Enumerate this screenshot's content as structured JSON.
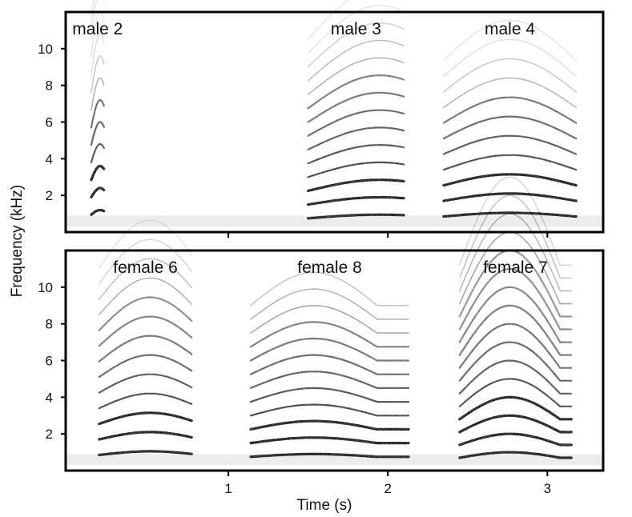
{
  "chart_data": {
    "type": "spectrogram",
    "ylabel": "Frequency (kHz)",
    "xlabel": "Time (s)",
    "x_ticks": [
      1,
      2,
      3
    ],
    "y_ticks": [
      2,
      4,
      6,
      8,
      10
    ],
    "xlim": [
      -0.02,
      3.35
    ],
    "ylim": [
      0,
      12
    ],
    "grid": false,
    "panels": [
      {
        "position": "top",
        "calls": [
          {
            "label": "male 2",
            "t_start": 0.15,
            "t_end": 0.2,
            "t_end2": 0.2,
            "x0": 0.14,
            "x1": 0.22,
            "f0_start": 0.95,
            "f0_peak": 1.2,
            "peak_t": 0.7,
            "max_freq": 11.0,
            "sharp_freq": 6.0
          },
          {
            "label": "male 3",
            "x0": 1.5,
            "x1": 2.1,
            "f0_start": 0.75,
            "f0_peak": 0.95,
            "peak_t": 0.75,
            "max_freq": 10.0,
            "sharp_freq": 7.0
          },
          {
            "label": "male 4",
            "x0": 2.35,
            "x1": 3.18,
            "f0_start": 0.85,
            "f0_peak": 1.05,
            "peak_t": 0.5,
            "max_freq": 9.5,
            "sharp_freq": 6.0
          }
        ]
      },
      {
        "position": "bottom",
        "calls": [
          {
            "label": "female 6",
            "x0": 0.19,
            "x1": 0.77,
            "f0_start": 0.85,
            "f0_peak": 1.05,
            "peak_t": 0.55,
            "max_freq": 10.5,
            "sharp_freq": 8.0
          },
          {
            "label": "female 8",
            "x0": 1.14,
            "x1": 2.13,
            "f0_start": 0.75,
            "f0_peak": 0.9,
            "peak_t": 0.4,
            "max_freq": 9.0,
            "sharp_freq": 7.5
          },
          {
            "label": "female 7",
            "x0": 2.45,
            "x1": 3.15,
            "f0_start": 0.7,
            "f0_peak": 1.0,
            "peak_t": 0.45,
            "max_freq": 11.0,
            "sharp_freq": 9.0
          }
        ]
      }
    ]
  }
}
